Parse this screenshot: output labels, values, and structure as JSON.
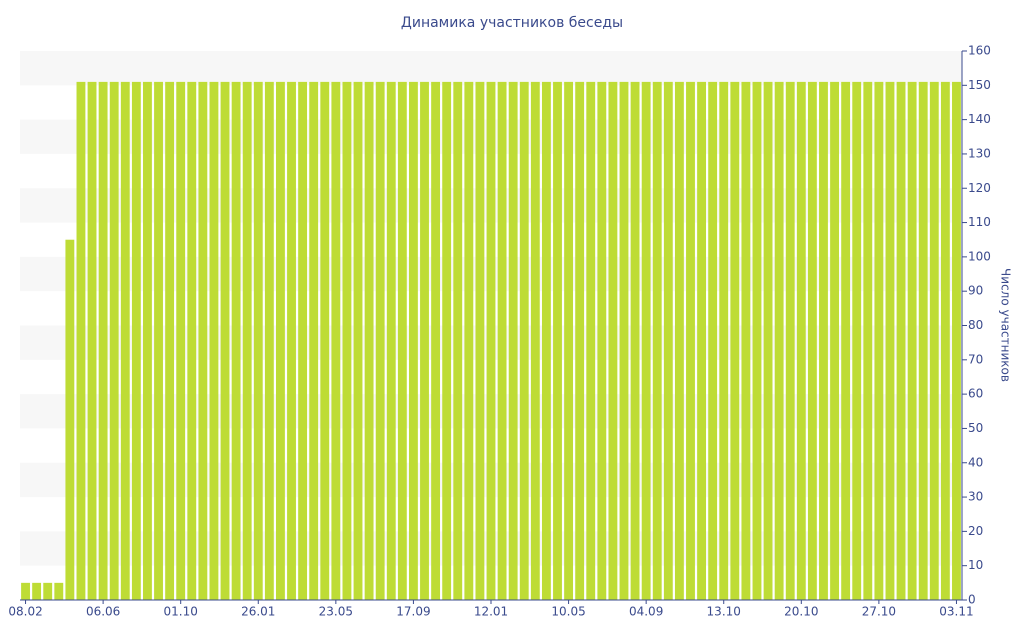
{
  "chart_data": {
    "type": "bar",
    "title": "Динамика участников беседы",
    "y_axis_label": "Число участников",
    "categories": [
      "08.02",
      null,
      null,
      null,
      null,
      null,
      null,
      "06.06",
      null,
      null,
      null,
      null,
      null,
      null,
      "01.10",
      null,
      null,
      null,
      null,
      null,
      null,
      "26.01",
      null,
      null,
      null,
      null,
      null,
      null,
      "23.05",
      null,
      null,
      null,
      null,
      null,
      null,
      "17.09",
      null,
      null,
      null,
      null,
      null,
      null,
      "12.01",
      null,
      null,
      null,
      null,
      null,
      null,
      "10.05",
      null,
      null,
      null,
      null,
      null,
      null,
      "04.09",
      null,
      null,
      null,
      null,
      null,
      null,
      "13.10",
      null,
      null,
      null,
      null,
      null,
      null,
      "20.10",
      null,
      null,
      null,
      null,
      null,
      null,
      "27.10",
      null,
      null,
      null,
      null,
      null,
      null,
      "03.11"
    ],
    "values": [
      5,
      5,
      5,
      5,
      105,
      151,
      151,
      151,
      151,
      151,
      151,
      151,
      151,
      151,
      151,
      151,
      151,
      151,
      151,
      151,
      151,
      151,
      151,
      151,
      151,
      151,
      151,
      151,
      151,
      151,
      151,
      151,
      151,
      151,
      151,
      151,
      151,
      151,
      151,
      151,
      151,
      151,
      151,
      151,
      151,
      151,
      151,
      151,
      151,
      151,
      151,
      151,
      151,
      151,
      151,
      151,
      151,
      151,
      151,
      151,
      151,
      151,
      151,
      151,
      151,
      151,
      151,
      151,
      151,
      151,
      151,
      151,
      151,
      151,
      151,
      151,
      151,
      151,
      151,
      151,
      151,
      151,
      151,
      151,
      151
    ],
    "color": "#bedc35",
    "ylim": [
      0,
      160
    ],
    "yticks": [
      0,
      10,
      20,
      30,
      40,
      50,
      60,
      70,
      80,
      90,
      100,
      110,
      120,
      130,
      140,
      150,
      160
    ],
    "grid": true,
    "y_axis_side": "right"
  }
}
